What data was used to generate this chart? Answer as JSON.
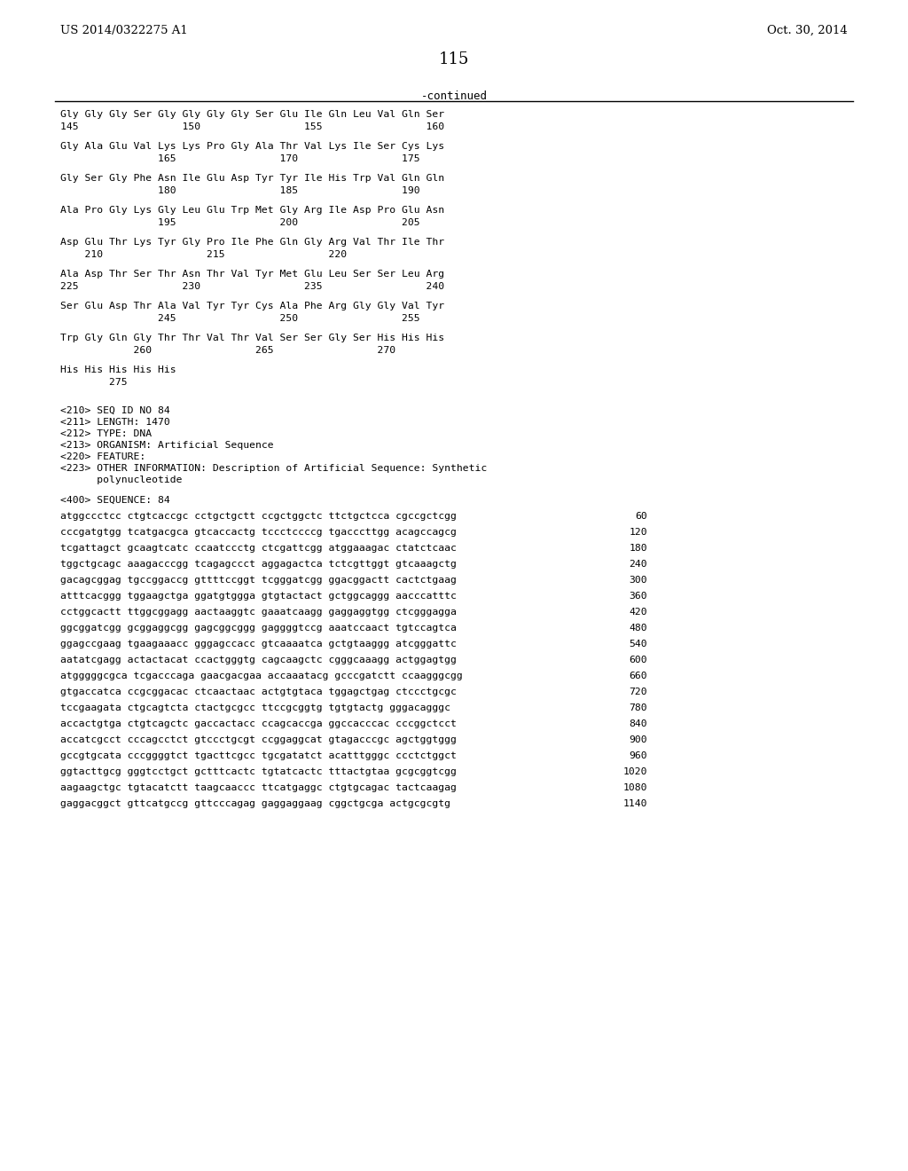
{
  "header_left": "US 2014/0322275 A1",
  "header_right": "Oct. 30, 2014",
  "page_number": "115",
  "continued_label": "-continued",
  "background_color": "#ffffff",
  "text_color": "#000000",
  "font_size_header": 9.5,
  "font_size_body": 8.2,
  "font_size_page": 13,
  "monospace_font": "DejaVu Sans Mono",
  "serif_font": "DejaVu Serif",
  "aa_lines": [
    {
      "seq": "Gly Gly Gly Ser Gly Gly Gly Gly Ser Glu Ile Gln Leu Val Gln Ser",
      "nums": "145                 150                 155                 160"
    },
    {
      "seq": "Gly Ala Glu Val Lys Lys Pro Gly Ala Thr Val Lys Ile Ser Cys Lys",
      "nums": "                165                 170                 175"
    },
    {
      "seq": "Gly Ser Gly Phe Asn Ile Glu Asp Tyr Tyr Ile His Trp Val Gln Gln",
      "nums": "                180                 185                 190"
    },
    {
      "seq": "Ala Pro Gly Lys Gly Leu Glu Trp Met Gly Arg Ile Asp Pro Glu Asn",
      "nums": "                195                 200                 205"
    },
    {
      "seq": "Asp Glu Thr Lys Tyr Gly Pro Ile Phe Gln Gly Arg Val Thr Ile Thr",
      "nums": "    210                 215                 220"
    },
    {
      "seq": "Ala Asp Thr Ser Thr Asn Thr Val Tyr Met Glu Leu Ser Ser Leu Arg",
      "nums": "225                 230                 235                 240"
    },
    {
      "seq": "Ser Glu Asp Thr Ala Val Tyr Tyr Cys Ala Phe Arg Gly Gly Val Tyr",
      "nums": "                245                 250                 255"
    },
    {
      "seq": "Trp Gly Gln Gly Thr Thr Val Thr Val Ser Ser Gly Ser His His His",
      "nums": "            260                 265                 270"
    },
    {
      "seq": "His His His His His",
      "nums": "        275"
    }
  ],
  "meta_lines": [
    "<210> SEQ ID NO 84",
    "<211> LENGTH: 1470",
    "<212> TYPE: DNA",
    "<213> ORGANISM: Artificial Sequence",
    "<220> FEATURE:",
    "<223> OTHER INFORMATION: Description of Artificial Sequence: Synthetic",
    "      polynucleotide"
  ],
  "seq_label": "<400> SEQUENCE: 84",
  "dna_lines": [
    {
      "seq": "atggccctcc ctgtcaccgc cctgctgctt ccgctggctc ttctgctcca cgccgctcgg",
      "num": "60"
    },
    {
      "seq": "cccgatgtgg tcatgacgca gtcaccactg tccctccccg tgacccttgg acagccagcg",
      "num": "120"
    },
    {
      "seq": "tcgattagct gcaagtcatc ccaatccctg ctcgattcgg atggaaagac ctatctcaac",
      "num": "180"
    },
    {
      "seq": "tggctgcagc aaagacccgg tcagagccct aggagactca tctcgttggt gtcaaagctg",
      "num": "240"
    },
    {
      "seq": "gacagcggag tgccggaccg gttttccggt tcgggatcgg ggacggactt cactctgaag",
      "num": "300"
    },
    {
      "seq": "atttcacggg tggaagctga ggatgtggga gtgtactact gctggcaggg aacccatttc",
      "num": "360"
    },
    {
      "seq": "cctggcactt ttggcggagg aactaaggtc gaaatcaagg gaggaggtgg ctcgggagga",
      "num": "420"
    },
    {
      "seq": "ggcggatcgg gcggaggcgg gagcggcggg gaggggtccg aaatccaact tgtccagtca",
      "num": "480"
    },
    {
      "seq": "ggagccgaag tgaagaaacc gggagccacc gtcaaaatca gctgtaaggg atcgggattc",
      "num": "540"
    },
    {
      "seq": "aatatcgagg actactacat ccactgggtg cagcaagctc cgggcaaagg actggagtgg",
      "num": "600"
    },
    {
      "seq": "atgggggcgca tcgacccaga gaacgacgaa accaaatacg gcccgatctt ccaagggcgg",
      "num": "660"
    },
    {
      "seq": "gtgaccatca ccgcggacac ctcaactaac actgtgtaca tggagctgag ctccctgcgc",
      "num": "720"
    },
    {
      "seq": "tccgaagata ctgcagtcta ctactgcgcc ttccgcggtg tgtgtactg gggacagggc",
      "num": "780"
    },
    {
      "seq": "accactgtga ctgtcagctc gaccactacc ccagcaccga ggccacccac cccggctcct",
      "num": "840"
    },
    {
      "seq": "accatcgcct cccagcctct gtccctgcgt ccggaggcat gtagacccgc agctggtggg",
      "num": "900"
    },
    {
      "seq": "gccgtgcata cccggggtct tgacttcgcc tgcgatatct acatttgggc ccctctggct",
      "num": "960"
    },
    {
      "seq": "ggtacttgcg gggtcctgct gctttcactc tgtatcactc tttactgtaa gcgcggtcgg",
      "num": "1020"
    },
    {
      "seq": "aagaagctgc tgtacatctt taagcaaccc ttcatgaggc ctgtgcagac tactcaagag",
      "num": "1080"
    },
    {
      "seq": "gaggacggct gttcatgccg gttcccagag gaggaggaag cggctgcga actgcgcgtg",
      "num": "1140"
    }
  ]
}
